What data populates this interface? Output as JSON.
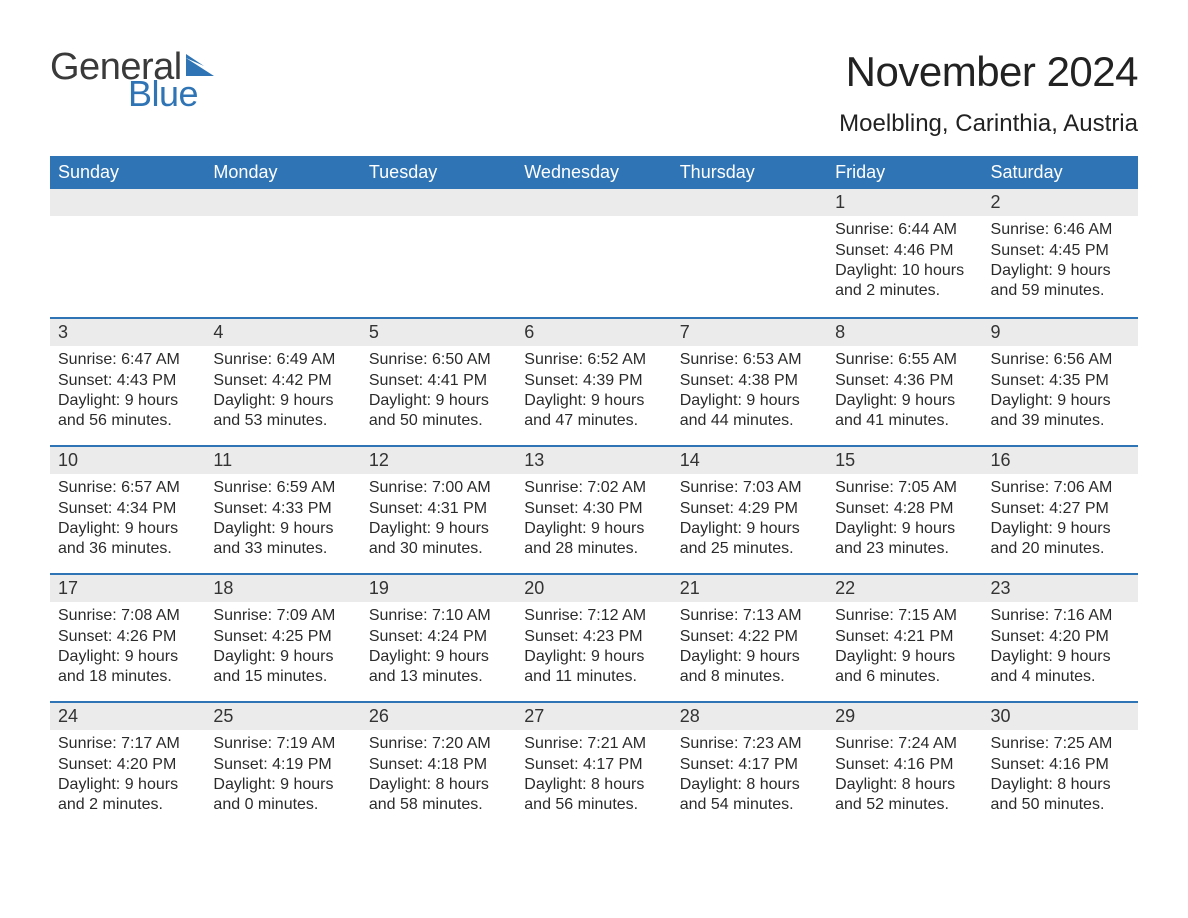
{
  "brand": {
    "word1": "General",
    "word2": "Blue",
    "text_color": "#3a3a3a",
    "accent_color": "#2f74b5"
  },
  "title": "November 2024",
  "location": "Moelbling, Carinthia, Austria",
  "header_bg": "#2f74b5",
  "header_text_color": "#ffffff",
  "daynum_bg": "#ebebeb",
  "week_divider_color": "#2f74b5",
  "weekdays": [
    "Sunday",
    "Monday",
    "Tuesday",
    "Wednesday",
    "Thursday",
    "Friday",
    "Saturday"
  ],
  "weeks": [
    [
      {
        "empty": true
      },
      {
        "empty": true
      },
      {
        "empty": true
      },
      {
        "empty": true
      },
      {
        "empty": true
      },
      {
        "n": "1",
        "sunrise": "6:44 AM",
        "sunset": "4:46 PM",
        "daylight": "10 hours and 2 minutes."
      },
      {
        "n": "2",
        "sunrise": "6:46 AM",
        "sunset": "4:45 PM",
        "daylight": "9 hours and 59 minutes."
      }
    ],
    [
      {
        "n": "3",
        "sunrise": "6:47 AM",
        "sunset": "4:43 PM",
        "daylight": "9 hours and 56 minutes."
      },
      {
        "n": "4",
        "sunrise": "6:49 AM",
        "sunset": "4:42 PM",
        "daylight": "9 hours and 53 minutes."
      },
      {
        "n": "5",
        "sunrise": "6:50 AM",
        "sunset": "4:41 PM",
        "daylight": "9 hours and 50 minutes."
      },
      {
        "n": "6",
        "sunrise": "6:52 AM",
        "sunset": "4:39 PM",
        "daylight": "9 hours and 47 minutes."
      },
      {
        "n": "7",
        "sunrise": "6:53 AM",
        "sunset": "4:38 PM",
        "daylight": "9 hours and 44 minutes."
      },
      {
        "n": "8",
        "sunrise": "6:55 AM",
        "sunset": "4:36 PM",
        "daylight": "9 hours and 41 minutes."
      },
      {
        "n": "9",
        "sunrise": "6:56 AM",
        "sunset": "4:35 PM",
        "daylight": "9 hours and 39 minutes."
      }
    ],
    [
      {
        "n": "10",
        "sunrise": "6:57 AM",
        "sunset": "4:34 PM",
        "daylight": "9 hours and 36 minutes."
      },
      {
        "n": "11",
        "sunrise": "6:59 AM",
        "sunset": "4:33 PM",
        "daylight": "9 hours and 33 minutes."
      },
      {
        "n": "12",
        "sunrise": "7:00 AM",
        "sunset": "4:31 PM",
        "daylight": "9 hours and 30 minutes."
      },
      {
        "n": "13",
        "sunrise": "7:02 AM",
        "sunset": "4:30 PM",
        "daylight": "9 hours and 28 minutes."
      },
      {
        "n": "14",
        "sunrise": "7:03 AM",
        "sunset": "4:29 PM",
        "daylight": "9 hours and 25 minutes."
      },
      {
        "n": "15",
        "sunrise": "7:05 AM",
        "sunset": "4:28 PM",
        "daylight": "9 hours and 23 minutes."
      },
      {
        "n": "16",
        "sunrise": "7:06 AM",
        "sunset": "4:27 PM",
        "daylight": "9 hours and 20 minutes."
      }
    ],
    [
      {
        "n": "17",
        "sunrise": "7:08 AM",
        "sunset": "4:26 PM",
        "daylight": "9 hours and 18 minutes."
      },
      {
        "n": "18",
        "sunrise": "7:09 AM",
        "sunset": "4:25 PM",
        "daylight": "9 hours and 15 minutes."
      },
      {
        "n": "19",
        "sunrise": "7:10 AM",
        "sunset": "4:24 PM",
        "daylight": "9 hours and 13 minutes."
      },
      {
        "n": "20",
        "sunrise": "7:12 AM",
        "sunset": "4:23 PM",
        "daylight": "9 hours and 11 minutes."
      },
      {
        "n": "21",
        "sunrise": "7:13 AM",
        "sunset": "4:22 PM",
        "daylight": "9 hours and 8 minutes."
      },
      {
        "n": "22",
        "sunrise": "7:15 AM",
        "sunset": "4:21 PM",
        "daylight": "9 hours and 6 minutes."
      },
      {
        "n": "23",
        "sunrise": "7:16 AM",
        "sunset": "4:20 PM",
        "daylight": "9 hours and 4 minutes."
      }
    ],
    [
      {
        "n": "24",
        "sunrise": "7:17 AM",
        "sunset": "4:20 PM",
        "daylight": "9 hours and 2 minutes."
      },
      {
        "n": "25",
        "sunrise": "7:19 AM",
        "sunset": "4:19 PM",
        "daylight": "9 hours and 0 minutes."
      },
      {
        "n": "26",
        "sunrise": "7:20 AM",
        "sunset": "4:18 PM",
        "daylight": "8 hours and 58 minutes."
      },
      {
        "n": "27",
        "sunrise": "7:21 AM",
        "sunset": "4:17 PM",
        "daylight": "8 hours and 56 minutes."
      },
      {
        "n": "28",
        "sunrise": "7:23 AM",
        "sunset": "4:17 PM",
        "daylight": "8 hours and 54 minutes."
      },
      {
        "n": "29",
        "sunrise": "7:24 AM",
        "sunset": "4:16 PM",
        "daylight": "8 hours and 52 minutes."
      },
      {
        "n": "30",
        "sunrise": "7:25 AM",
        "sunset": "4:16 PM",
        "daylight": "8 hours and 50 minutes."
      }
    ]
  ],
  "labels": {
    "sunrise": "Sunrise:",
    "sunset": "Sunset:",
    "daylight": "Daylight:"
  }
}
